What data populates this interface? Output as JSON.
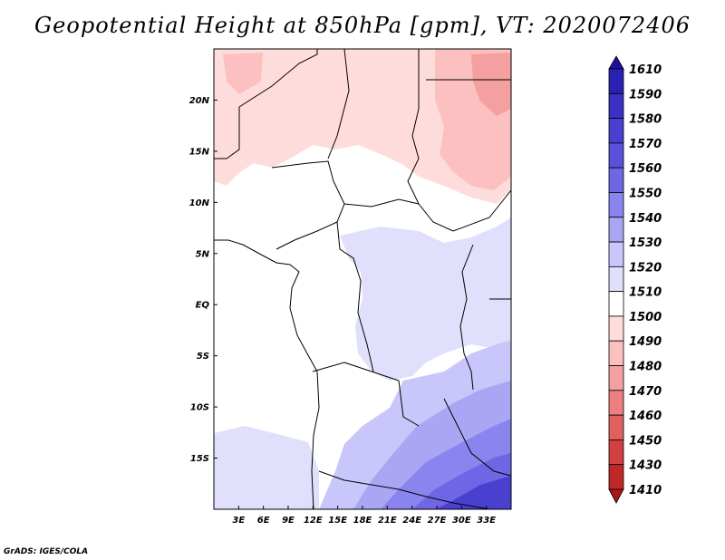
{
  "title": "Geopotential Height at 850hPa [gpm], VT: 2020072406",
  "credit": "GrADS: IGES/COLA",
  "map": {
    "lon_range": [
      0,
      36
    ],
    "lat_range": [
      -20,
      25
    ],
    "x_ticks": [
      {
        "lon": 3,
        "label": "3E"
      },
      {
        "lon": 6,
        "label": "6E"
      },
      {
        "lon": 9,
        "label": "9E"
      },
      {
        "lon": 12,
        "label": "12E"
      },
      {
        "lon": 15,
        "label": "15E"
      },
      {
        "lon": 18,
        "label": "18E"
      },
      {
        "lon": 21,
        "label": "21E"
      },
      {
        "lon": 24,
        "label": "24E"
      },
      {
        "lon": 27,
        "label": "27E"
      },
      {
        "lon": 30,
        "label": "30E"
      },
      {
        "lon": 33,
        "label": "33E"
      }
    ],
    "y_ticks": [
      {
        "lat": 20,
        "label": "20N"
      },
      {
        "lat": 15,
        "label": "15N"
      },
      {
        "lat": 10,
        "label": "10N"
      },
      {
        "lat": 5,
        "label": "5N"
      },
      {
        "lat": 0,
        "label": "EQ"
      },
      {
        "lat": -5,
        "label": "5S"
      },
      {
        "lat": -10,
        "label": "10S"
      },
      {
        "lat": -15,
        "label": "15S"
      }
    ]
  },
  "colorbar": {
    "levels": [
      "1610",
      "1590",
      "1580",
      "1570",
      "1560",
      "1550",
      "1540",
      "1530",
      "1520",
      "1510",
      "1500",
      "1490",
      "1480",
      "1470",
      "1460",
      "1450",
      "1430",
      "1410"
    ],
    "colors": [
      "#1e10a0",
      "#2a20b4",
      "#3a30c4",
      "#4a40d0",
      "#5a50dc",
      "#6e66e4",
      "#8a84ee",
      "#aaa6f4",
      "#c8c6fa",
      "#e0e0fc",
      "#ffffff",
      "#ffdcdc",
      "#fcc0c0",
      "#f4a0a0",
      "#ec8080",
      "#e06060",
      "#d04040",
      "#c02828",
      "#a81818"
    ]
  }
}
